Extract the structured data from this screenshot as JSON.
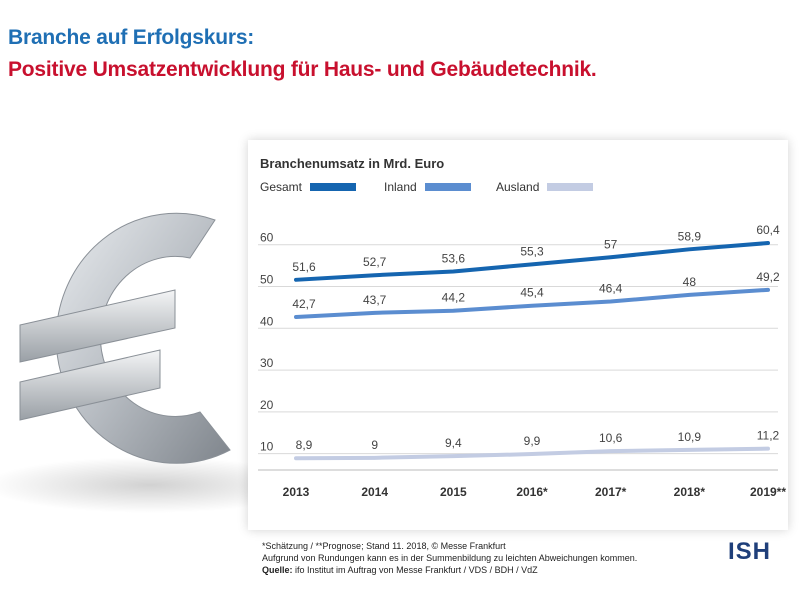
{
  "header": {
    "title_line1": "Branche auf Erfolgskurs:",
    "title_line2": "Positive Umsatzentwicklung für Haus- und Gebäudetechnik."
  },
  "panel": {
    "title": "Branchenumsatz in Mrd. Euro"
  },
  "footer": {
    "line1": "*Schätzung / **Prognose; Stand 11. 2018, © Messe Frankfurt",
    "line2": "Aufgrund von Rundungen kann es in der Summenbildung zu leichten Abweichungen kommen.",
    "line3_label": "Quelle:",
    "line3_text": " ifo Institut im Auftrag von Messe Frankfurt / VDS / BDH / VdZ"
  },
  "logo": "ISH",
  "chart_data": {
    "type": "line",
    "title": "Branchenumsatz in Mrd. Euro",
    "categories": [
      "2013",
      "2014",
      "2015",
      "2016*",
      "2017*",
      "2018*",
      "2019**"
    ],
    "yticks": [
      10,
      20,
      30,
      40,
      50,
      60
    ],
    "ylim": [
      8,
      64
    ],
    "grid": true,
    "legend_position": "top-left",
    "series": [
      {
        "name": "Gesamt",
        "color": "#1565b0",
        "values": [
          51.6,
          52.7,
          53.6,
          55.3,
          57,
          58.9,
          60.4
        ],
        "labels": [
          "51,6",
          "52,7",
          "53,6",
          "55,3",
          "57",
          "58,9",
          "60,4"
        ]
      },
      {
        "name": "Inland",
        "color": "#5b8dd0",
        "values": [
          42.7,
          43.7,
          44.2,
          45.4,
          46.4,
          48,
          49.2
        ],
        "labels": [
          "42,7",
          "43,7",
          "44,2",
          "45,4",
          "46,4",
          "48",
          "49,2"
        ]
      },
      {
        "name": "Ausland",
        "color": "#c3cce3",
        "values": [
          8.9,
          9,
          9.4,
          9.9,
          10.6,
          10.9,
          11.2
        ],
        "labels": [
          "8,9",
          "9",
          "9,4",
          "9,9",
          "10,6",
          "10,9",
          "11,2"
        ]
      }
    ]
  }
}
